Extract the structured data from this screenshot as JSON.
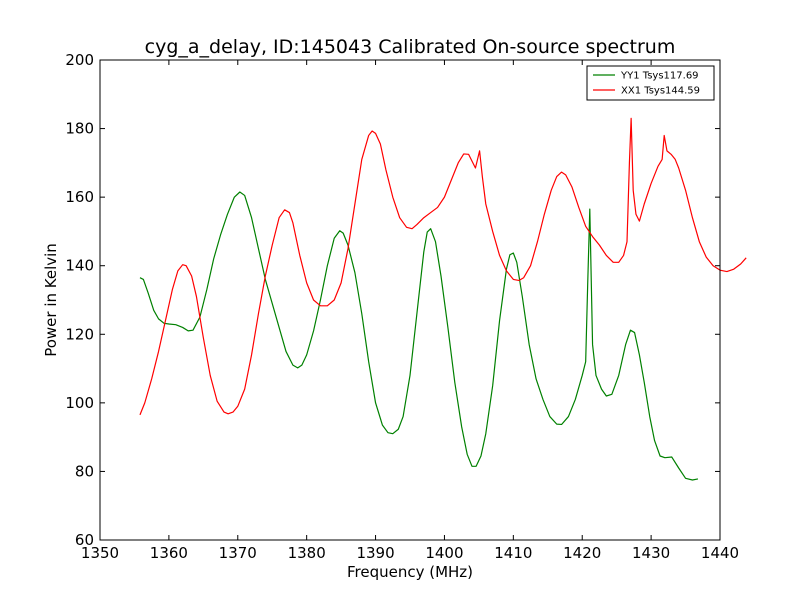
{
  "chart_data": {
    "type": "line",
    "title": "cyg_a_delay, ID:145043 Calibrated On-source spectrum",
    "xlabel": "Frequency (MHz)",
    "ylabel": "Power in Kelvin",
    "xlim": [
      1350,
      1440
    ],
    "ylim": [
      60,
      200
    ],
    "xticks": [
      1350,
      1360,
      1370,
      1380,
      1390,
      1400,
      1410,
      1420,
      1430,
      1440
    ],
    "yticks": [
      60,
      80,
      100,
      120,
      140,
      160,
      180,
      200
    ],
    "legend_position": "top-right",
    "series": [
      {
        "name": "YY1 Tsys117.69",
        "color": "#008000",
        "points": [
          [
            1355.8,
            136.5
          ],
          [
            1356.3,
            136
          ],
          [
            1357,
            132
          ],
          [
            1357.8,
            127
          ],
          [
            1358.5,
            124.5
          ],
          [
            1359.3,
            123.2
          ],
          [
            1360,
            123
          ],
          [
            1361,
            122.8
          ],
          [
            1362,
            122
          ],
          [
            1362.8,
            121
          ],
          [
            1363.5,
            121.2
          ],
          [
            1364.5,
            125
          ],
          [
            1365.5,
            133
          ],
          [
            1366.5,
            142
          ],
          [
            1367.5,
            149
          ],
          [
            1368.5,
            155
          ],
          [
            1369.5,
            160
          ],
          [
            1370.3,
            161.5
          ],
          [
            1371,
            160.5
          ],
          [
            1372,
            154
          ],
          [
            1373,
            145
          ],
          [
            1374,
            136
          ],
          [
            1375,
            129
          ],
          [
            1376,
            122
          ],
          [
            1377,
            115
          ],
          [
            1378,
            111
          ],
          [
            1378.7,
            110.2
          ],
          [
            1379.3,
            111
          ],
          [
            1380,
            114
          ],
          [
            1381,
            121
          ],
          [
            1382,
            130
          ],
          [
            1383,
            140
          ],
          [
            1384,
            148
          ],
          [
            1384.8,
            150.2
          ],
          [
            1385.3,
            149.5
          ],
          [
            1386,
            146
          ],
          [
            1387,
            138
          ],
          [
            1388,
            126
          ],
          [
            1389,
            112
          ],
          [
            1390,
            100
          ],
          [
            1391,
            93.5
          ],
          [
            1391.8,
            91.3
          ],
          [
            1392.5,
            91
          ],
          [
            1393.3,
            92.3
          ],
          [
            1394,
            96
          ],
          [
            1395,
            108
          ],
          [
            1396,
            126
          ],
          [
            1397,
            144
          ],
          [
            1397.5,
            149.8
          ],
          [
            1398,
            150.8
          ],
          [
            1398.7,
            147
          ],
          [
            1399.5,
            137
          ],
          [
            1400.5,
            122
          ],
          [
            1401.5,
            106
          ],
          [
            1402.5,
            93
          ],
          [
            1403.3,
            85
          ],
          [
            1404,
            81.5
          ],
          [
            1404.6,
            81.5
          ],
          [
            1405.3,
            84.5
          ],
          [
            1406,
            91
          ],
          [
            1407,
            105
          ],
          [
            1408,
            124
          ],
          [
            1409,
            139
          ],
          [
            1409.5,
            143.2
          ],
          [
            1410,
            143.7
          ],
          [
            1410.5,
            141
          ],
          [
            1411.3,
            131
          ],
          [
            1412.3,
            117
          ],
          [
            1413.3,
            107
          ],
          [
            1414.3,
            101
          ],
          [
            1415.3,
            96
          ],
          [
            1416.3,
            93.8
          ],
          [
            1417,
            93.7
          ],
          [
            1418,
            96
          ],
          [
            1419,
            101
          ],
          [
            1420,
            108
          ],
          [
            1420.5,
            112
          ],
          [
            1420.8,
            135
          ],
          [
            1421.1,
            156.5
          ],
          [
            1421.5,
            117
          ],
          [
            1422,
            108
          ],
          [
            1422.8,
            104
          ],
          [
            1423.5,
            102
          ],
          [
            1424.3,
            102.5
          ],
          [
            1425.3,
            108
          ],
          [
            1426.3,
            117
          ],
          [
            1427,
            121.2
          ],
          [
            1427.6,
            120.5
          ],
          [
            1428.3,
            114
          ],
          [
            1429,
            106
          ],
          [
            1429.8,
            96
          ],
          [
            1430.5,
            89
          ],
          [
            1431.3,
            84.5
          ],
          [
            1432,
            84
          ],
          [
            1433,
            84.2
          ],
          [
            1434,
            81
          ],
          [
            1435,
            78
          ],
          [
            1436,
            77.5
          ],
          [
            1436.8,
            77.8
          ]
        ]
      },
      {
        "name": "XX1 Tsys144.59",
        "color": "#ff0000",
        "points": [
          [
            1355.8,
            96.5
          ],
          [
            1356.5,
            100
          ],
          [
            1357.5,
            107
          ],
          [
            1358.5,
            115
          ],
          [
            1359.5,
            124
          ],
          [
            1360.5,
            133
          ],
          [
            1361.3,
            138.5
          ],
          [
            1362,
            140.3
          ],
          [
            1362.5,
            140
          ],
          [
            1363.3,
            137
          ],
          [
            1364,
            131
          ],
          [
            1365,
            119
          ],
          [
            1366,
            108
          ],
          [
            1367,
            100.5
          ],
          [
            1368,
            97.3
          ],
          [
            1368.6,
            96.8
          ],
          [
            1369.3,
            97.3
          ],
          [
            1370,
            99
          ],
          [
            1371,
            104
          ],
          [
            1372,
            114
          ],
          [
            1373,
            126
          ],
          [
            1374,
            137
          ],
          [
            1375,
            146
          ],
          [
            1376,
            154
          ],
          [
            1376.8,
            156.3
          ],
          [
            1377.5,
            155.5
          ],
          [
            1378,
            152.5
          ],
          [
            1379,
            143
          ],
          [
            1380,
            135
          ],
          [
            1381,
            130
          ],
          [
            1382,
            128.3
          ],
          [
            1383,
            128.3
          ],
          [
            1384,
            130
          ],
          [
            1385,
            135
          ],
          [
            1386,
            145
          ],
          [
            1387,
            158
          ],
          [
            1388,
            171
          ],
          [
            1389,
            178
          ],
          [
            1389.5,
            179.3
          ],
          [
            1390,
            178.6
          ],
          [
            1390.7,
            175.5
          ],
          [
            1391.5,
            168
          ],
          [
            1392.5,
            160
          ],
          [
            1393.5,
            154
          ],
          [
            1394.5,
            151.2
          ],
          [
            1395.3,
            150.8
          ],
          [
            1396,
            152
          ],
          [
            1397,
            154
          ],
          [
            1398,
            155.5
          ],
          [
            1399,
            157
          ],
          [
            1400,
            160
          ],
          [
            1401,
            165
          ],
          [
            1402,
            170
          ],
          [
            1402.8,
            172.6
          ],
          [
            1403.5,
            172.5
          ],
          [
            1404,
            170.5
          ],
          [
            1404.5,
            168.5
          ],
          [
            1405.1,
            173.5
          ],
          [
            1405.5,
            166
          ],
          [
            1406,
            158
          ],
          [
            1407,
            150
          ],
          [
            1408,
            143
          ],
          [
            1409,
            138.5
          ],
          [
            1410,
            136
          ],
          [
            1410.8,
            135.7
          ],
          [
            1411.5,
            136.5
          ],
          [
            1412.5,
            140
          ],
          [
            1413.5,
            147
          ],
          [
            1414.5,
            155
          ],
          [
            1415.5,
            162
          ],
          [
            1416.3,
            166
          ],
          [
            1417,
            167.3
          ],
          [
            1417.6,
            166.5
          ],
          [
            1418.5,
            163
          ],
          [
            1419.5,
            157
          ],
          [
            1420.5,
            151.5
          ],
          [
            1421.5,
            148.5
          ],
          [
            1422.5,
            146
          ],
          [
            1423.5,
            143
          ],
          [
            1424.5,
            141
          ],
          [
            1425.3,
            141
          ],
          [
            1426,
            143
          ],
          [
            1426.5,
            147
          ],
          [
            1426.85,
            170
          ],
          [
            1427.1,
            183
          ],
          [
            1427.4,
            162
          ],
          [
            1427.8,
            155
          ],
          [
            1428.3,
            153
          ],
          [
            1429,
            158
          ],
          [
            1430,
            164
          ],
          [
            1431,
            169
          ],
          [
            1431.6,
            171
          ],
          [
            1431.9,
            178
          ],
          [
            1432.3,
            173.5
          ],
          [
            1432.9,
            172.5
          ],
          [
            1433.5,
            171
          ],
          [
            1434,
            168.5
          ],
          [
            1435,
            162
          ],
          [
            1436,
            154
          ],
          [
            1437,
            147
          ],
          [
            1438,
            142.5
          ],
          [
            1439,
            140
          ],
          [
            1440,
            138.7
          ],
          [
            1441,
            138.3
          ],
          [
            1442,
            139
          ],
          [
            1443,
            140.5
          ],
          [
            1443.8,
            142.3
          ]
        ]
      }
    ]
  }
}
